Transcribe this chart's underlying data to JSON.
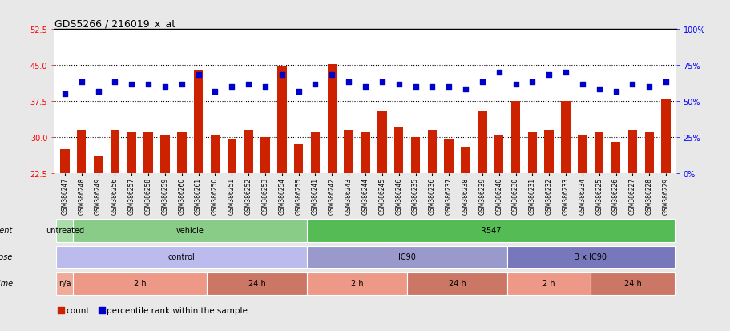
{
  "title": "GDS5266 / 216019_x_at",
  "categories": [
    "GSM386247",
    "GSM386248",
    "GSM386249",
    "GSM386256",
    "GSM386257",
    "GSM386258",
    "GSM386259",
    "GSM386260",
    "GSM386261",
    "GSM386250",
    "GSM386251",
    "GSM386252",
    "GSM386253",
    "GSM386254",
    "GSM386255",
    "GSM386241",
    "GSM386242",
    "GSM386243",
    "GSM386244",
    "GSM386245",
    "GSM386246",
    "GSM386235",
    "GSM386236",
    "GSM386237",
    "GSM386238",
    "GSM386239",
    "GSM386240",
    "GSM386230",
    "GSM386231",
    "GSM386232",
    "GSM386233",
    "GSM386234",
    "GSM386225",
    "GSM386226",
    "GSM386227",
    "GSM386228",
    "GSM386229"
  ],
  "bar_values": [
    27.5,
    31.5,
    26.0,
    31.5,
    31.0,
    31.0,
    30.5,
    31.0,
    44.0,
    30.5,
    29.5,
    31.5,
    30.1,
    44.8,
    28.5,
    31.0,
    45.2,
    31.5,
    31.0,
    35.5,
    32.0,
    30.0,
    31.5,
    29.5,
    28.0,
    35.5,
    30.5,
    37.5,
    31.0,
    31.5,
    37.5,
    30.5,
    31.0,
    29.0,
    31.5,
    31.0,
    38.0
  ],
  "dot_values": [
    39.0,
    41.5,
    39.5,
    41.5,
    41.0,
    41.0,
    40.5,
    41.0,
    43.0,
    39.5,
    40.5,
    41.0,
    40.5,
    43.0,
    39.5,
    41.0,
    43.0,
    41.5,
    40.5,
    41.5,
    41.0,
    40.5,
    40.5,
    40.5,
    40.0,
    41.5,
    43.5,
    41.0,
    41.5,
    43.0,
    43.5,
    41.0,
    40.0,
    39.5,
    41.0,
    40.5,
    41.5
  ],
  "bar_color": "#cc2200",
  "dot_color": "#0000cc",
  "ylim_left": [
    22.5,
    52.5
  ],
  "ylim_right": [
    0,
    100
  ],
  "yticks_left": [
    22.5,
    30.0,
    37.5,
    45.0,
    52.5
  ],
  "yticks_right": [
    0,
    25,
    50,
    75,
    100
  ],
  "hlines": [
    30.0,
    37.5,
    45.0
  ],
  "agent_groups": [
    {
      "label": "untreated",
      "start": 0,
      "end": 1,
      "color": "#aaddaa"
    },
    {
      "label": "vehicle",
      "start": 1,
      "end": 15,
      "color": "#88cc88"
    },
    {
      "label": "R547",
      "start": 15,
      "end": 37,
      "color": "#55bb55"
    }
  ],
  "dose_groups": [
    {
      "label": "control",
      "start": 0,
      "end": 15,
      "color": "#bbbbee"
    },
    {
      "label": "IC90",
      "start": 15,
      "end": 27,
      "color": "#9999cc"
    },
    {
      "label": "3 x IC90",
      "start": 27,
      "end": 37,
      "color": "#7777bb"
    }
  ],
  "time_groups": [
    {
      "label": "n/a",
      "start": 0,
      "end": 1,
      "color": "#f0aa99"
    },
    {
      "label": "2 h",
      "start": 1,
      "end": 9,
      "color": "#ee9988"
    },
    {
      "label": "24 h",
      "start": 9,
      "end": 15,
      "color": "#cc7766"
    },
    {
      "label": "2 h",
      "start": 15,
      "end": 21,
      "color": "#ee9988"
    },
    {
      "label": "24 h",
      "start": 21,
      "end": 27,
      "color": "#cc7766"
    },
    {
      "label": "2 h",
      "start": 27,
      "end": 32,
      "color": "#ee9988"
    },
    {
      "label": "24 h",
      "start": 32,
      "end": 37,
      "color": "#cc7766"
    }
  ],
  "bg_color": "#e8e8e8",
  "plot_bg": "#ffffff"
}
